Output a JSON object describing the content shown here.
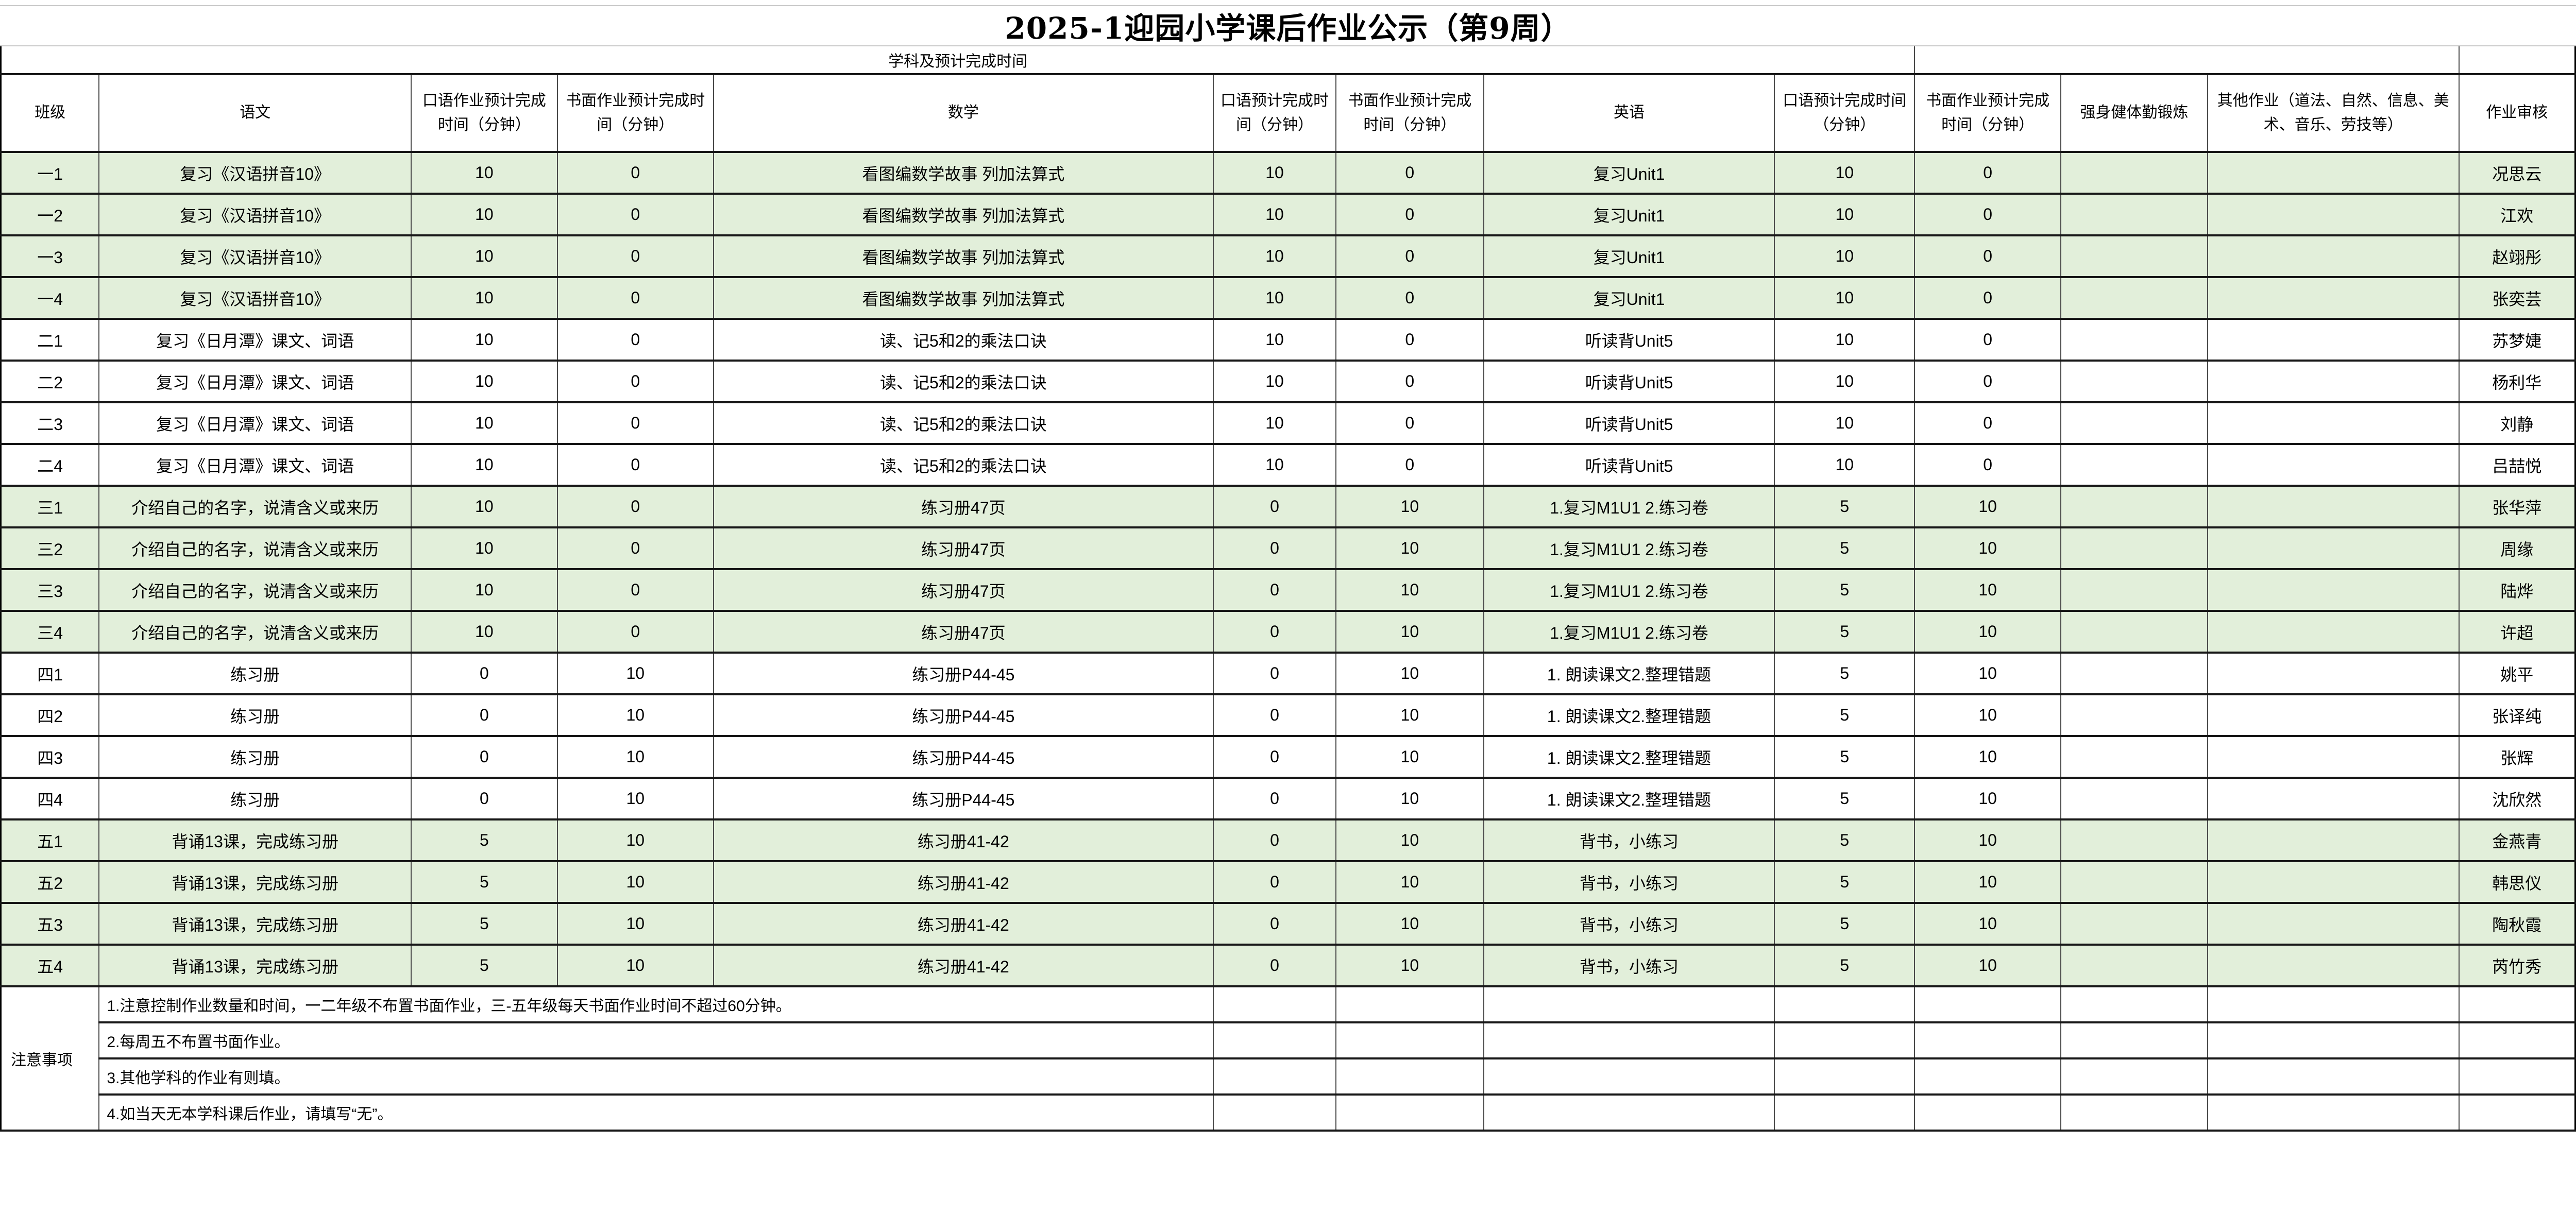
{
  "title": "2025-1迎园小学课后作业公示（第9周）",
  "section_label": "学科及预计完成时间",
  "colors": {
    "row_highlight": "#e2efda",
    "grid_line": "#161616"
  },
  "columns": [
    "班级",
    "语文",
    "口语作业预计完成时间（分钟）",
    "书面作业预计完成时间（分钟）",
    "数学",
    "口语预计完成时间（分钟）",
    "书面作业预计完成时间（分钟）",
    "英语",
    "口语预计完成时间（分钟）",
    "书面作业预计完成时间（分钟）",
    "强身健体勤锻炼",
    "其他作业（道法、自然、信息、美术、音乐、劳技等）",
    "作业审核"
  ],
  "rows": [
    {
      "class_name": "一1",
      "chinese": "复习《汉语拼音10》",
      "chinese_oral": "10",
      "chinese_written": "0",
      "math": "看图编数学故事 列加法算式",
      "math_oral": "10",
      "math_written": "0",
      "english": "复习Unit1",
      "english_oral": "10",
      "english_written": "0",
      "fitness": "",
      "other": "",
      "reviewer": "况思云",
      "highlight": true
    },
    {
      "class_name": "一2",
      "chinese": "复习《汉语拼音10》",
      "chinese_oral": "10",
      "chinese_written": "0",
      "math": "看图编数学故事 列加法算式",
      "math_oral": "10",
      "math_written": "0",
      "english": "复习Unit1",
      "english_oral": "10",
      "english_written": "0",
      "fitness": "",
      "other": "",
      "reviewer": "江欢",
      "highlight": true
    },
    {
      "class_name": "一3",
      "chinese": "复习《汉语拼音10》",
      "chinese_oral": "10",
      "chinese_written": "0",
      "math": "看图编数学故事 列加法算式",
      "math_oral": "10",
      "math_written": "0",
      "english": "复习Unit1",
      "english_oral": "10",
      "english_written": "0",
      "fitness": "",
      "other": "",
      "reviewer": "赵翊彤",
      "highlight": true
    },
    {
      "class_name": "一4",
      "chinese": "复习《汉语拼音10》",
      "chinese_oral": "10",
      "chinese_written": "0",
      "math": "看图编数学故事 列加法算式",
      "math_oral": "10",
      "math_written": "0",
      "english": "复习Unit1",
      "english_oral": "10",
      "english_written": "0",
      "fitness": "",
      "other": "",
      "reviewer": "张奕芸",
      "highlight": true
    },
    {
      "class_name": "二1",
      "chinese": "复习《日月潭》课文、词语",
      "chinese_oral": "10",
      "chinese_written": "0",
      "math": "读、记5和2的乘法口诀",
      "math_oral": "10",
      "math_written": "0",
      "english": "听读背Unit5",
      "english_oral": "10",
      "english_written": "0",
      "fitness": "",
      "other": "",
      "reviewer": "苏梦婕",
      "highlight": false
    },
    {
      "class_name": "二2",
      "chinese": "复习《日月潭》课文、词语",
      "chinese_oral": "10",
      "chinese_written": "0",
      "math": "读、记5和2的乘法口诀",
      "math_oral": "10",
      "math_written": "0",
      "english": "听读背Unit5",
      "english_oral": "10",
      "english_written": "0",
      "fitness": "",
      "other": "",
      "reviewer": "杨利华",
      "highlight": false
    },
    {
      "class_name": "二3",
      "chinese": "复习《日月潭》课文、词语",
      "chinese_oral": "10",
      "chinese_written": "0",
      "math": "读、记5和2的乘法口诀",
      "math_oral": "10",
      "math_written": "0",
      "english": "听读背Unit5",
      "english_oral": "10",
      "english_written": "0",
      "fitness": "",
      "other": "",
      "reviewer": "刘静",
      "highlight": false
    },
    {
      "class_name": "二4",
      "chinese": "复习《日月潭》课文、词语",
      "chinese_oral": "10",
      "chinese_written": "0",
      "math": "读、记5和2的乘法口诀",
      "math_oral": "10",
      "math_written": "0",
      "english": "听读背Unit5",
      "english_oral": "10",
      "english_written": "0",
      "fitness": "",
      "other": "",
      "reviewer": "吕喆悦",
      "highlight": false
    },
    {
      "class_name": "三1",
      "chinese": "介绍自己的名字，说清含义或来历",
      "chinese_oral": "10",
      "chinese_written": "0",
      "math": "练习册47页",
      "math_oral": "0",
      "math_written": "10",
      "english": "1.复习M1U1 2.练习卷",
      "english_oral": "5",
      "english_written": "10",
      "fitness": "",
      "other": "",
      "reviewer": "张华萍",
      "highlight": true
    },
    {
      "class_name": "三2",
      "chinese": "介绍自己的名字，说清含义或来历",
      "chinese_oral": "10",
      "chinese_written": "0",
      "math": "练习册47页",
      "math_oral": "0",
      "math_written": "10",
      "english": "1.复习M1U1 2.练习卷",
      "english_oral": "5",
      "english_written": "10",
      "fitness": "",
      "other": "",
      "reviewer": "周缘",
      "highlight": true
    },
    {
      "class_name": "三3",
      "chinese": "介绍自己的名字，说清含义或来历",
      "chinese_oral": "10",
      "chinese_written": "0",
      "math": "练习册47页",
      "math_oral": "0",
      "math_written": "10",
      "english": "1.复习M1U1 2.练习卷",
      "english_oral": "5",
      "english_written": "10",
      "fitness": "",
      "other": "",
      "reviewer": "陆烨",
      "highlight": true
    },
    {
      "class_name": "三4",
      "chinese": "介绍自己的名字，说清含义或来历",
      "chinese_oral": "10",
      "chinese_written": "0",
      "math": "练习册47页",
      "math_oral": "0",
      "math_written": "10",
      "english": "1.复习M1U1 2.练习卷",
      "english_oral": "5",
      "english_written": "10",
      "fitness": "",
      "other": "",
      "reviewer": "许超",
      "highlight": true
    },
    {
      "class_name": "四1",
      "chinese": "练习册",
      "chinese_oral": "0",
      "chinese_written": "10",
      "math": "练习册P44-45",
      "math_oral": "0",
      "math_written": "10",
      "english": "1. 朗读课文2.整理错题",
      "english_oral": "5",
      "english_written": "10",
      "fitness": "",
      "other": "",
      "reviewer": "姚平",
      "highlight": false
    },
    {
      "class_name": "四2",
      "chinese": "练习册",
      "chinese_oral": "0",
      "chinese_written": "10",
      "math": "练习册P44-45",
      "math_oral": "0",
      "math_written": "10",
      "english": "1. 朗读课文2.整理错题",
      "english_oral": "5",
      "english_written": "10",
      "fitness": "",
      "other": "",
      "reviewer": "张译纯",
      "highlight": false
    },
    {
      "class_name": "四3",
      "chinese": "练习册",
      "chinese_oral": "0",
      "chinese_written": "10",
      "math": "练习册P44-45",
      "math_oral": "0",
      "math_written": "10",
      "english": "1. 朗读课文2.整理错题",
      "english_oral": "5",
      "english_written": "10",
      "fitness": "",
      "other": "",
      "reviewer": "张辉",
      "highlight": false
    },
    {
      "class_name": "四4",
      "chinese": "练习册",
      "chinese_oral": "0",
      "chinese_written": "10",
      "math": "练习册P44-45",
      "math_oral": "0",
      "math_written": "10",
      "english": "1. 朗读课文2.整理错题",
      "english_oral": "5",
      "english_written": "10",
      "fitness": "",
      "other": "",
      "reviewer": "沈欣然",
      "highlight": false
    },
    {
      "class_name": "五1",
      "chinese": "背诵13课，完成练习册",
      "chinese_oral": "5",
      "chinese_written": "10",
      "math": "练习册41-42",
      "math_oral": "0",
      "math_written": "10",
      "english": "背书，小练习",
      "english_oral": "5",
      "english_written": "10",
      "fitness": "",
      "other": "",
      "reviewer": "金燕青",
      "highlight": true
    },
    {
      "class_name": "五2",
      "chinese": "背诵13课，完成练习册",
      "chinese_oral": "5",
      "chinese_written": "10",
      "math": "练习册41-42",
      "math_oral": "0",
      "math_written": "10",
      "english": "背书，小练习",
      "english_oral": "5",
      "english_written": "10",
      "fitness": "",
      "other": "",
      "reviewer": "韩思仪",
      "highlight": true
    },
    {
      "class_name": "五3",
      "chinese": "背诵13课，完成练习册",
      "chinese_oral": "5",
      "chinese_written": "10",
      "math": "练习册41-42",
      "math_oral": "0",
      "math_written": "10",
      "english": "背书，小练习",
      "english_oral": "5",
      "english_written": "10",
      "fitness": "",
      "other": "",
      "reviewer": "陶秋霞",
      "highlight": true
    },
    {
      "class_name": "五4",
      "chinese": "背诵13课，完成练习册",
      "chinese_oral": "5",
      "chinese_written": "10",
      "math": "练习册41-42",
      "math_oral": "0",
      "math_written": "10",
      "english": "背书，小练习",
      "english_oral": "5",
      "english_written": "10",
      "fitness": "",
      "other": "",
      "reviewer": "芮竹秀",
      "highlight": true
    }
  ],
  "notes": {
    "label": "注意事项",
    "items": [
      "1.注意控制作业数量和时间，一二年级不布置书面作业，三-五年级每天书面作业时间不超过60分钟。",
      "2.每周五不布置书面作业。",
      "3.其他学科的作业有则填。",
      "4.如当天无本学科课后作业，请填写“无”。"
    ]
  }
}
